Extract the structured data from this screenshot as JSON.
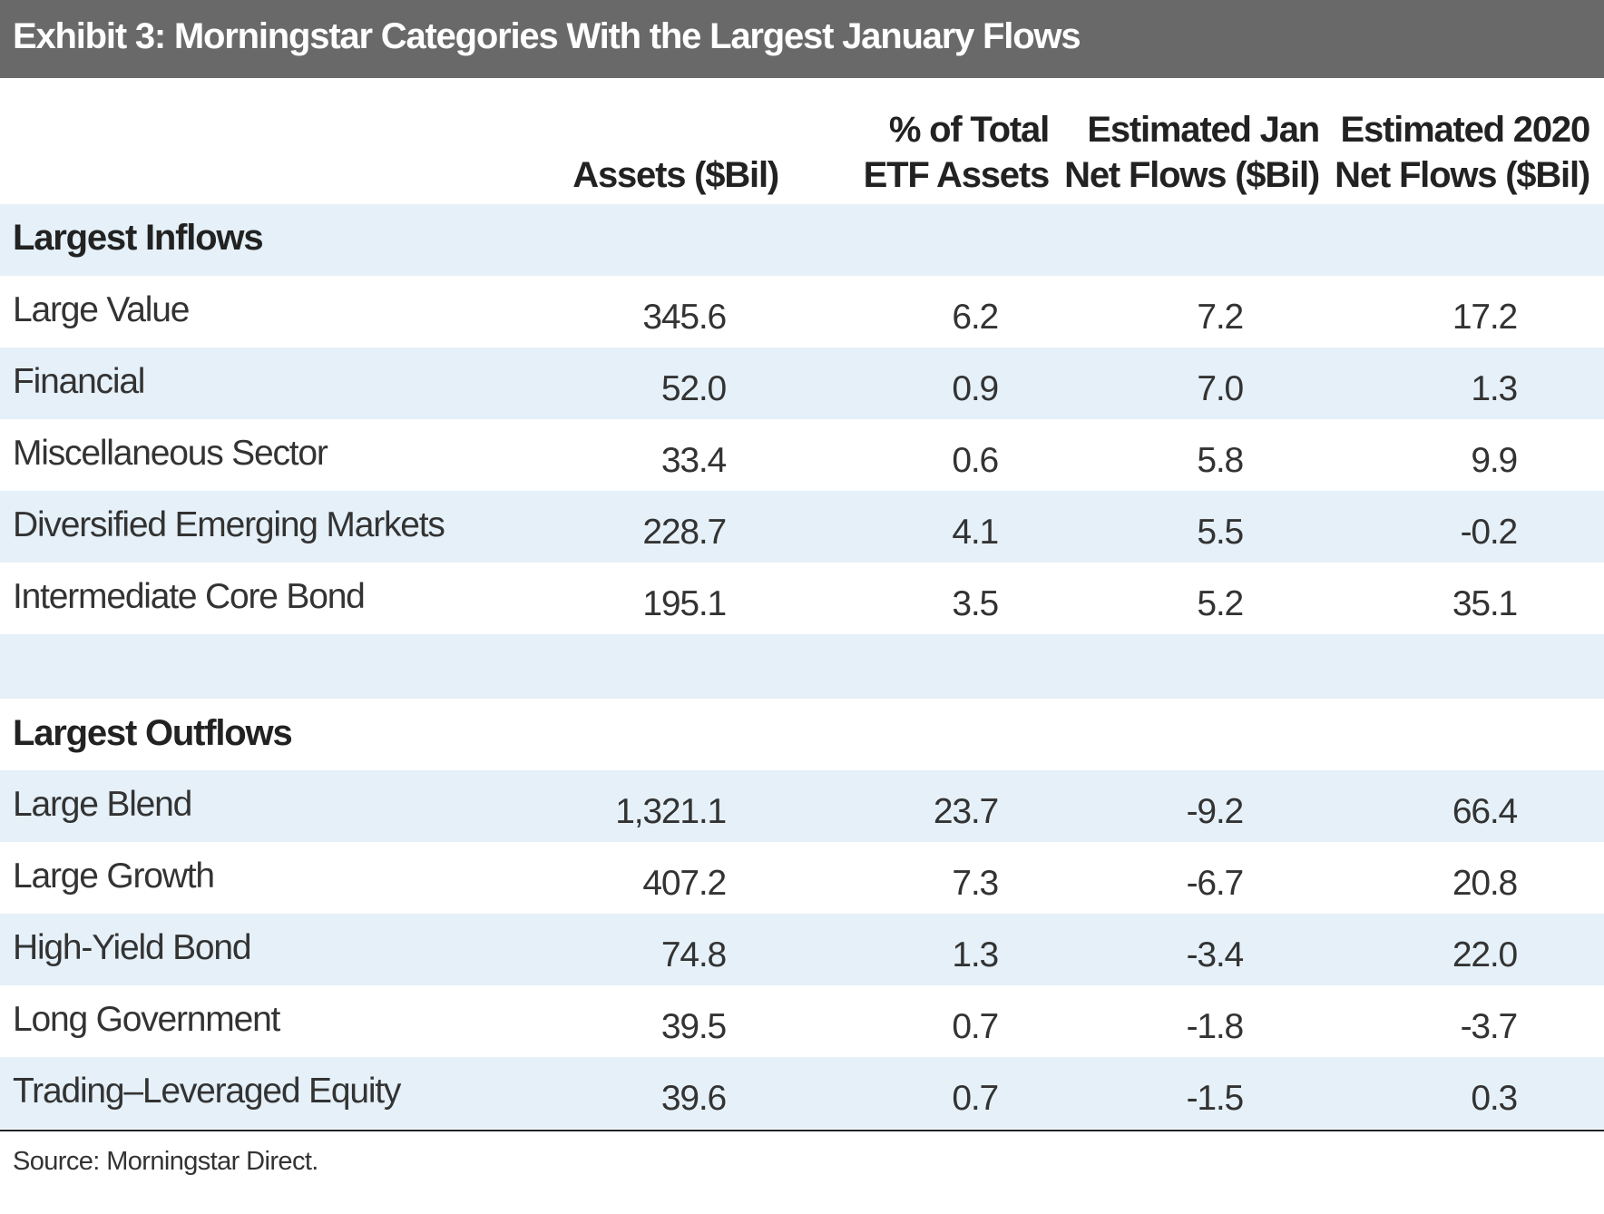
{
  "title": "Exhibit 3: Morningstar Categories With the Largest January Flows",
  "headers": {
    "assets": [
      "Assets ($Bil)"
    ],
    "pct": [
      "% of Total",
      "ETF Assets"
    ],
    "jan": [
      "Estimated Jan",
      "Net Flows ($Bil)"
    ],
    "y2020": [
      "Estimated 2020",
      "Net Flows ($Bil)"
    ]
  },
  "chart_data": {
    "type": "table",
    "title": "Exhibit 3: Morningstar Categories With the Largest January Flows",
    "columns": [
      "",
      "Assets ($Bil)",
      "% of Total ETF Assets",
      "Estimated Jan Net Flows ($Bil)",
      "Estimated 2020 Net Flows ($Bil)"
    ],
    "sections": [
      {
        "label": "Largest Inflows",
        "rows": [
          {
            "category": "Large Value",
            "assets": "345.6",
            "pct": "6.2",
            "jan": "7.2",
            "y2020": "17.2"
          },
          {
            "category": "Financial",
            "assets": "52.0",
            "pct": "0.9",
            "jan": "7.0",
            "y2020": "1.3"
          },
          {
            "category": "Miscellaneous Sector",
            "assets": "33.4",
            "pct": "0.6",
            "jan": "5.8",
            "y2020": "9.9"
          },
          {
            "category": "Diversified Emerging Markets",
            "assets": "228.7",
            "pct": "4.1",
            "jan": "5.5",
            "y2020": "-0.2"
          },
          {
            "category": "Intermediate Core Bond",
            "assets": "195.1",
            "pct": "3.5",
            "jan": "5.2",
            "y2020": "35.1"
          }
        ]
      },
      {
        "label": "Largest Outflows",
        "rows": [
          {
            "category": "Large Blend",
            "assets": "1,321.1",
            "pct": "23.7",
            "jan": "-9.2",
            "y2020": "66.4"
          },
          {
            "category": "Large Growth",
            "assets": "407.2",
            "pct": "7.3",
            "jan": "-6.7",
            "y2020": "20.8"
          },
          {
            "category": "High-Yield Bond",
            "assets": "74.8",
            "pct": "1.3",
            "jan": "-3.4",
            "y2020": "22.0"
          },
          {
            "category": "Long Government",
            "assets": "39.5",
            "pct": "0.7",
            "jan": "-1.8",
            "y2020": "-3.7"
          },
          {
            "category": "Trading–Leveraged Equity",
            "assets": "39.6",
            "pct": "0.7",
            "jan": "-1.5",
            "y2020": "0.3"
          }
        ]
      }
    ]
  },
  "source": "Source: Morningstar Direct.",
  "colors": {
    "title_bar": "#696969",
    "row_band": "#e5f0f8",
    "text": "#333333"
  }
}
